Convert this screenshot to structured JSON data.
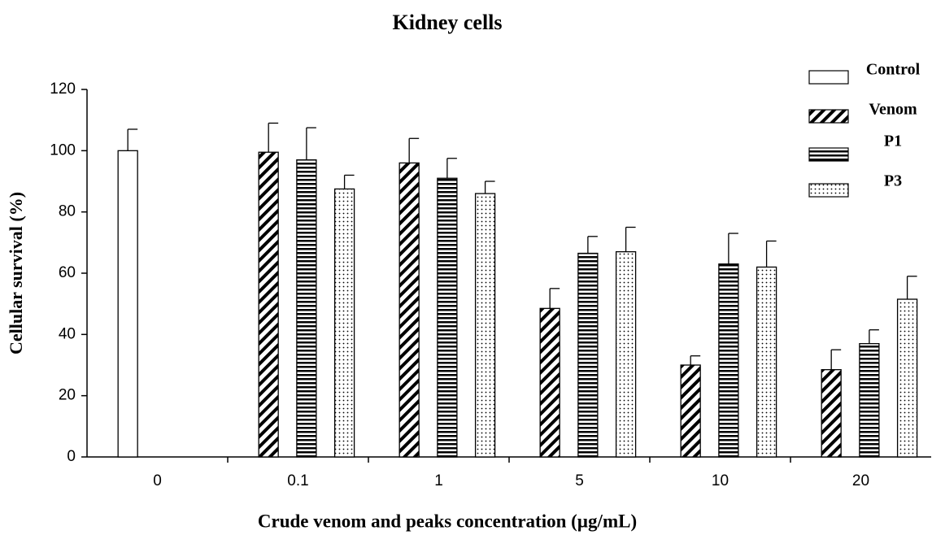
{
  "chart_data": {
    "type": "bar",
    "title": "Kidney cells",
    "x_label": "Crude venom and peaks concentration (µg/mL)",
    "y_label": "Cellular survival (%)",
    "categories": [
      "0",
      "0.1",
      "1",
      "5",
      "10",
      "20"
    ],
    "series": [
      {
        "name": "Control",
        "color": "#ffffff",
        "pattern": "solid",
        "values": [
          100,
          null,
          null,
          null,
          null,
          null
        ],
        "errors": [
          7,
          null,
          null,
          null,
          null,
          null
        ]
      },
      {
        "name": "Venom",
        "color": "#000000",
        "pattern": "diagonal",
        "values": [
          null,
          99.5,
          96,
          48.5,
          30,
          28.5
        ],
        "errors": [
          null,
          9.5,
          8,
          6.5,
          3,
          6.5
        ]
      },
      {
        "name": "P1",
        "color": "#000000",
        "pattern": "horizontal",
        "values": [
          null,
          97,
          91,
          66.5,
          63,
          37
        ],
        "errors": [
          null,
          10.5,
          6.5,
          5.5,
          10,
          4.5
        ]
      },
      {
        "name": "P3",
        "color": "#000000",
        "pattern": "dots",
        "values": [
          null,
          87.5,
          86,
          67,
          62,
          51.5
        ],
        "errors": [
          null,
          4.5,
          4,
          8,
          8.5,
          7.5
        ]
      }
    ],
    "ylim": [
      0,
      120
    ],
    "yticks": [
      0,
      20,
      40,
      60,
      80,
      100,
      120
    ],
    "grid": false,
    "legend": "top-right"
  }
}
